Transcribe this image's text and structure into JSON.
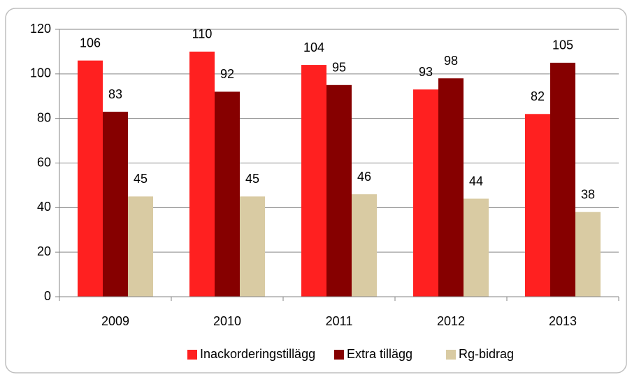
{
  "chart_data": {
    "type": "bar",
    "categories": [
      "2009",
      "2010",
      "2011",
      "2012",
      "2013"
    ],
    "series": [
      {
        "name": "Inackorderingstillägg",
        "color": "#ff2020",
        "values": [
          106,
          110,
          104,
          93,
          82
        ]
      },
      {
        "name": "Extra tillägg",
        "color": "#860000",
        "values": [
          83,
          92,
          95,
          98,
          105
        ]
      },
      {
        "name": "Rg-bidrag",
        "color": "#d9cba3",
        "values": [
          45,
          45,
          46,
          44,
          38
        ]
      }
    ],
    "ylim": [
      0,
      120
    ],
    "yticks": [
      0,
      20,
      40,
      60,
      80,
      100,
      120
    ],
    "grid": true,
    "legend": "bottom"
  }
}
